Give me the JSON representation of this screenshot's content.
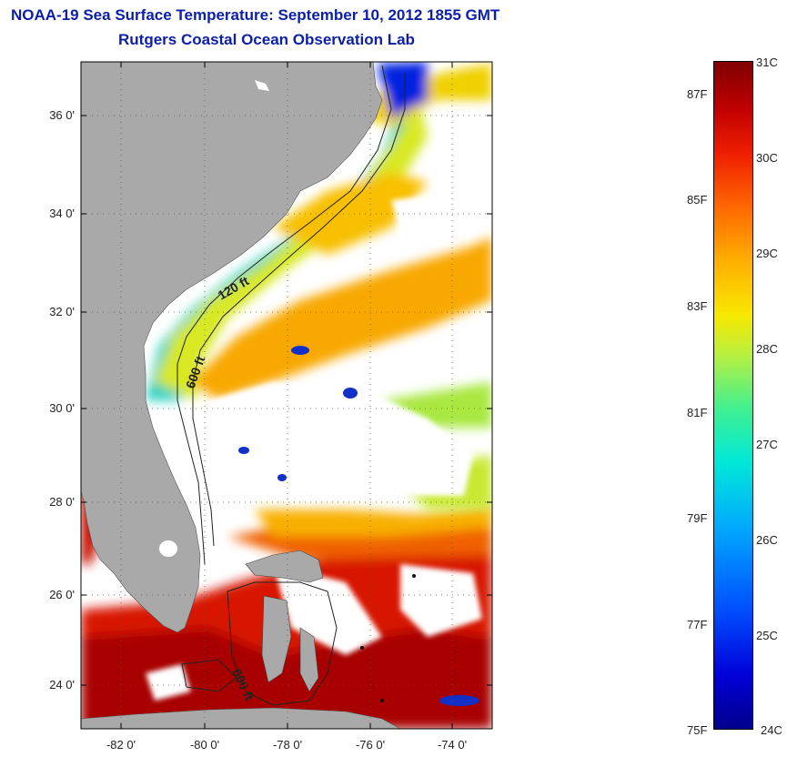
{
  "header": {
    "title": "NOAA-19 Sea Surface Temperature:  September 10, 2012 1855 GMT",
    "subtitle": "Rutgers Coastal Ocean Observation Lab"
  },
  "map": {
    "lat_labels": [
      "36 0'",
      "34 0'",
      "32 0'",
      "30 0'",
      "28 0'",
      "26 0'",
      "24 0'"
    ],
    "lon_labels": [
      "-82 0'",
      "-80 0'",
      "-78 0'",
      "-76 0'",
      "-74 0'"
    ],
    "contours": {
      "c120": "120 ft",
      "c600": "600 ft",
      "c600b": "600 ft"
    },
    "colors": {
      "land": "#a9a9a9",
      "cloud": "#ffffff",
      "warm": "#c80000",
      "cool": "#2a50ff"
    }
  },
  "colorbar": {
    "celsius": [
      "31C",
      "30C",
      "29C",
      "28C",
      "27C",
      "26C",
      "25C",
      "24C"
    ],
    "fahrenheit": [
      "87F",
      "85F",
      "83F",
      "81F",
      "79F",
      "77F",
      "75F"
    ],
    "range_c": [
      24,
      31
    ],
    "range_f": [
      75,
      87
    ]
  }
}
